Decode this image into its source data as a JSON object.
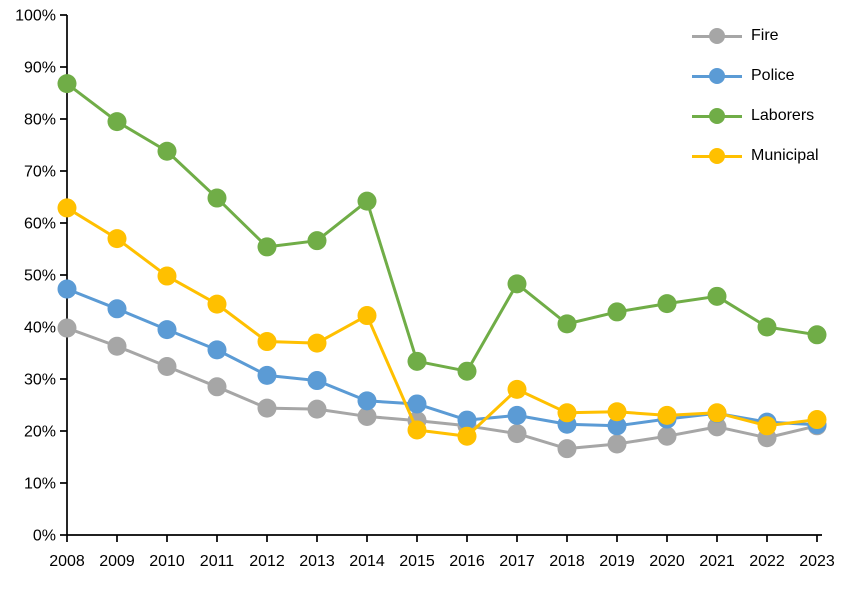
{
  "chart_data": {
    "type": "line",
    "title": "",
    "xlabel": "",
    "ylabel": "",
    "unit": "%",
    "ylim": [
      0,
      100
    ],
    "ytick_step": 10,
    "grid": false,
    "legend_position": "top-right",
    "axis_color": "#000000",
    "background_color": "#ffffff",
    "categories": [
      "2008",
      "2009",
      "2010",
      "2011",
      "2012",
      "2013",
      "2014",
      "2015",
      "2016",
      "2017",
      "2018",
      "2019",
      "2020",
      "2021",
      "2022",
      "2023"
    ],
    "y_tick_labels": [
      "0%",
      "10%",
      "20%",
      "30%",
      "40%",
      "50%",
      "60%",
      "70%",
      "80%",
      "90%",
      "100%"
    ],
    "series": [
      {
        "name": "Fire",
        "color": "#A6A6A6",
        "values": [
          39.8,
          36.3,
          32.4,
          28.5,
          24.4,
          24.2,
          22.8,
          22.0,
          21.0,
          19.5,
          16.6,
          17.5,
          19.0,
          20.8,
          18.7,
          21.0
        ]
      },
      {
        "name": "Police",
        "color": "#5B9BD5",
        "values": [
          47.3,
          43.5,
          39.5,
          35.6,
          30.7,
          29.7,
          25.8,
          25.2,
          22.1,
          23.0,
          21.3,
          21.0,
          22.3,
          23.4,
          21.7,
          21.2
        ]
      },
      {
        "name": "Laborers",
        "color": "#70AD47",
        "values": [
          86.8,
          79.5,
          73.8,
          64.8,
          55.4,
          56.6,
          64.2,
          33.4,
          31.5,
          48.3,
          40.6,
          42.9,
          44.5,
          45.9,
          40.0,
          38.5
        ]
      },
      {
        "name": "Municipal",
        "color": "#FFC000",
        "values": [
          62.9,
          57.0,
          49.8,
          44.4,
          37.2,
          36.9,
          42.2,
          20.2,
          19.0,
          28.0,
          23.5,
          23.7,
          23.0,
          23.5,
          21.0,
          22.2
        ]
      }
    ]
  }
}
